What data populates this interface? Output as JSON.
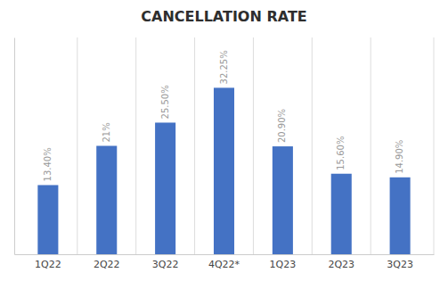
{
  "chart_data": {
    "type": "bar",
    "title": "CANCELLATION RATE",
    "categories": [
      "1Q22",
      "2Q22",
      "3Q22",
      "4Q22*",
      "1Q23",
      "2Q23",
      "3Q23"
    ],
    "values": [
      13.4,
      21.0,
      25.5,
      32.25,
      20.9,
      15.6,
      14.9
    ],
    "value_labels": [
      "13.40%",
      "21%",
      "25.50%",
      "32.25%",
      "20.90%",
      "15.60%",
      "14.90%"
    ],
    "color": "#4472C4",
    "ylim": [
      0,
      42
    ],
    "data_labels": true,
    "tick_labels": "x"
  }
}
